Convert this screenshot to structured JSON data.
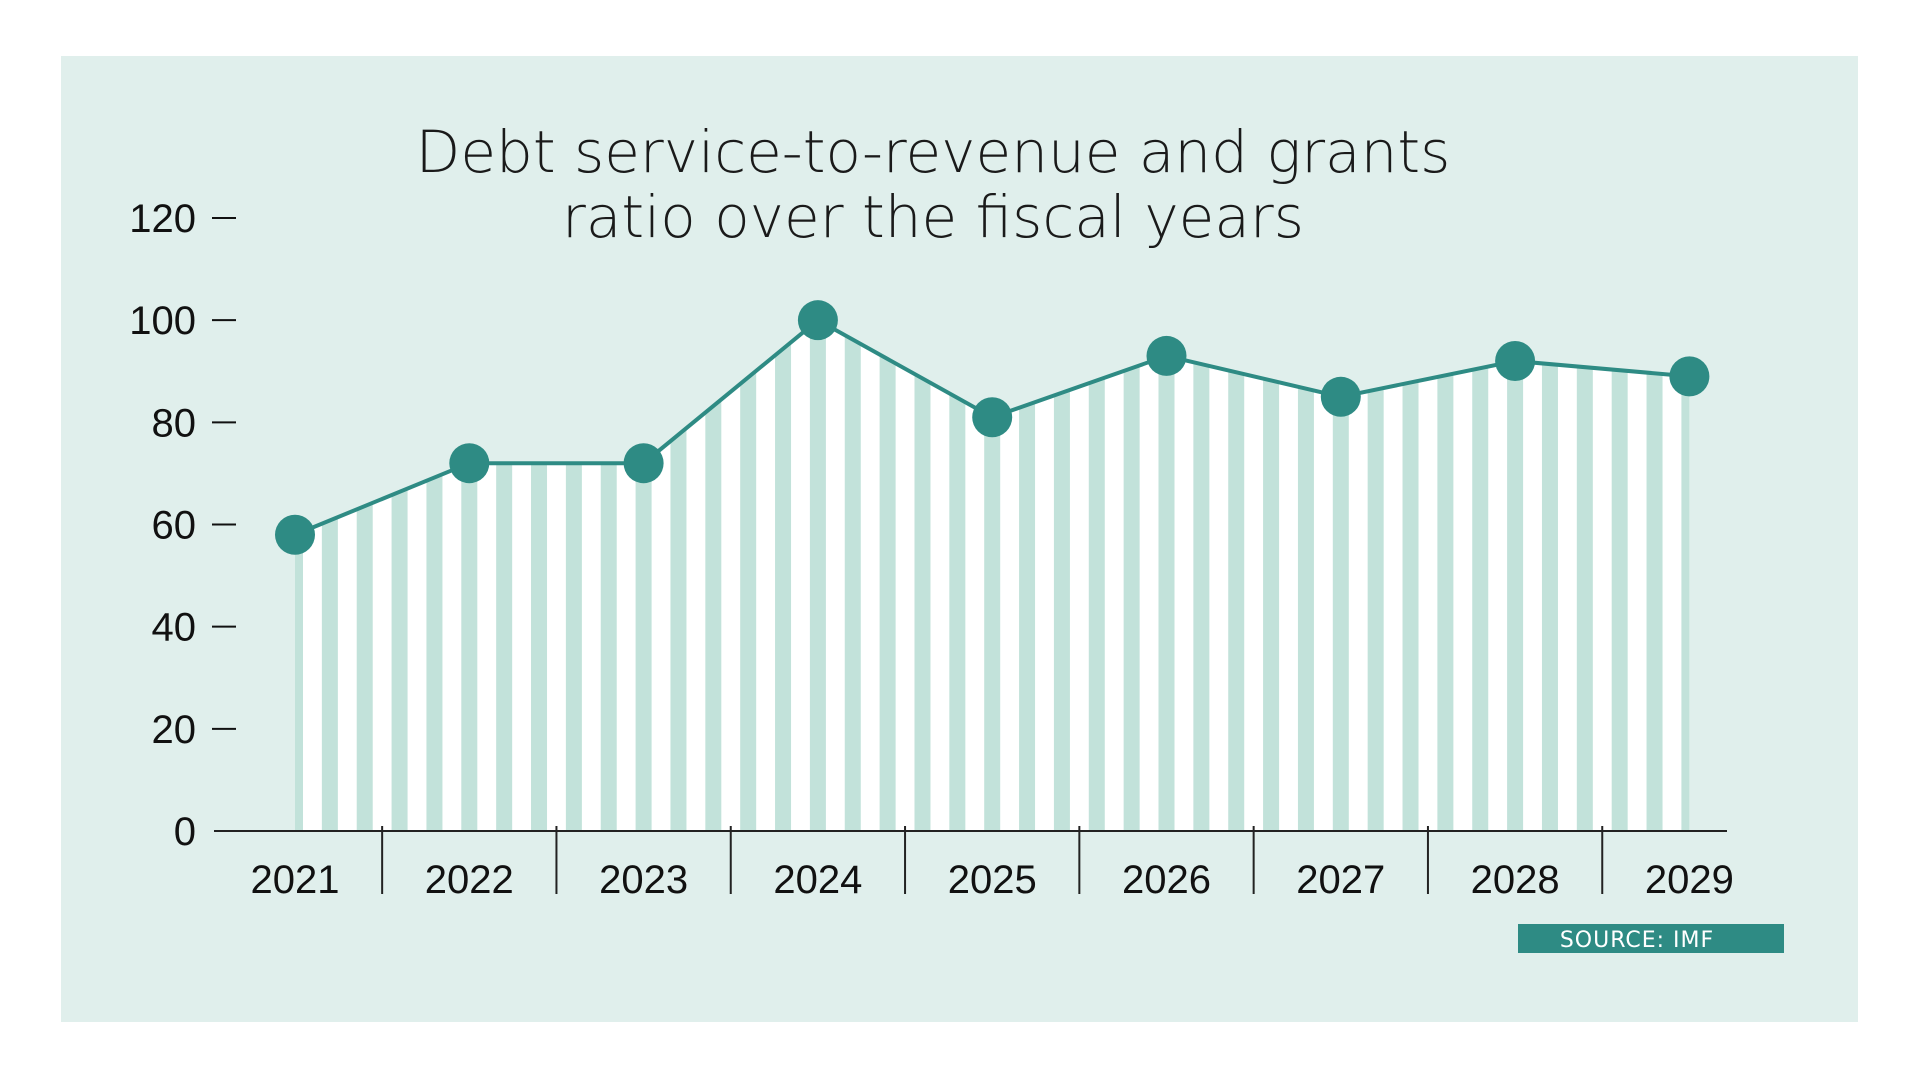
{
  "chart_data": {
    "type": "area",
    "title": "Debt service-to-revenue and grants ratio over the fiscal years",
    "title_lines": [
      "Debt service-to-revenue and grants",
      "ratio over the fiscal years"
    ],
    "xlabel": "",
    "ylabel": "",
    "categories": [
      "2021",
      "2022",
      "2023",
      "2024",
      "2025",
      "2026",
      "2027",
      "2028",
      "2029"
    ],
    "values": [
      58,
      72,
      72,
      100,
      81,
      93,
      85,
      92,
      89
    ],
    "ylim": [
      0,
      120
    ],
    "yticks": [
      "0",
      "20",
      "40",
      "60",
      "80",
      "100",
      "120"
    ],
    "grid": false,
    "legend": "none",
    "source": "SOURCE: IMF"
  },
  "colors": {
    "panel": "#e0efec",
    "line": "#2e8b84",
    "stripe": "#c2e2da",
    "area": "#ffffff",
    "source_badge": "#2e8b84"
  }
}
